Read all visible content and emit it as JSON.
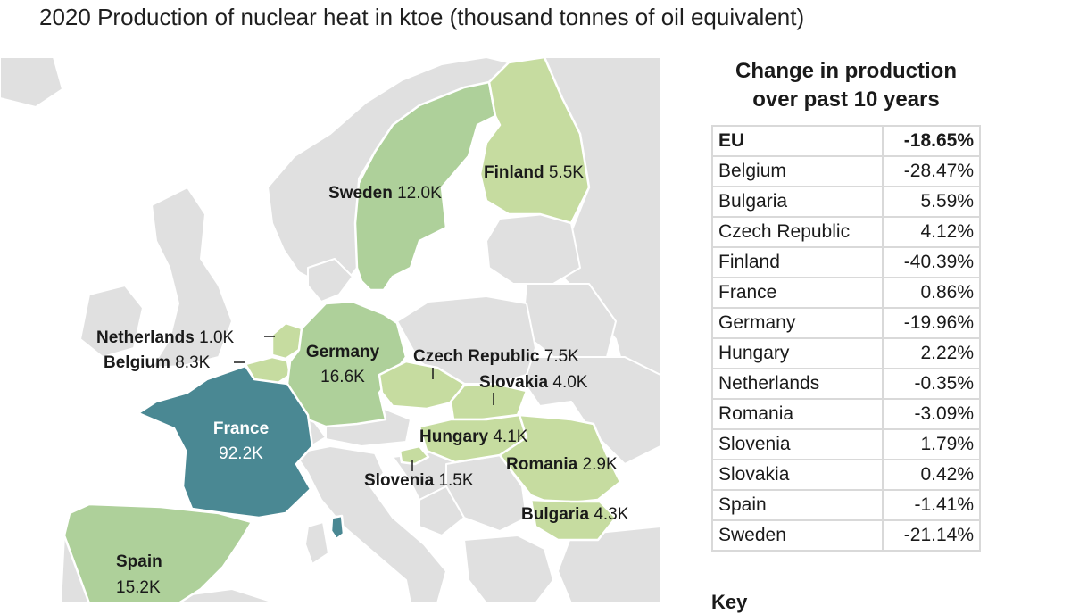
{
  "title": "2020 Production of nuclear heat in ktoe (thousand tonnes of oil equivalent)",
  "colors": {
    "background": "#ffffff",
    "non_producer": "#e0e0e0",
    "low": "#c6dca0",
    "mid": "#aed09a",
    "high": "#4a8893",
    "border": "#ffffff"
  },
  "map": {
    "countries": [
      {
        "id": "sweden",
        "name": "Sweden",
        "value": "12.0K",
        "level": "mid"
      },
      {
        "id": "finland",
        "name": "Finland",
        "value": "5.5K",
        "level": "low"
      },
      {
        "id": "netherlands",
        "name": "Netherlands",
        "value": "1.0K",
        "level": "low"
      },
      {
        "id": "belgium",
        "name": "Belgium",
        "value": "8.3K",
        "level": "low"
      },
      {
        "id": "germany",
        "name": "Germany",
        "value": "16.6K",
        "level": "mid"
      },
      {
        "id": "czech",
        "name": "Czech Republic",
        "value": "7.5K",
        "level": "low"
      },
      {
        "id": "slovakia",
        "name": "Slovakia",
        "value": "4.0K",
        "level": "low"
      },
      {
        "id": "france",
        "name": "France",
        "value": "92.2K",
        "level": "high"
      },
      {
        "id": "hungary",
        "name": "Hungary",
        "value": "4.1K",
        "level": "low"
      },
      {
        "id": "slovenia",
        "name": "Slovenia",
        "value": "1.5K",
        "level": "low"
      },
      {
        "id": "romania",
        "name": "Romania",
        "value": "2.9K",
        "level": "low"
      },
      {
        "id": "bulgaria",
        "name": "Bulgaria",
        "value": "4.3K",
        "level": "low"
      },
      {
        "id": "spain",
        "name": "Spain",
        "value": "15.2K",
        "level": "mid"
      }
    ]
  },
  "table": {
    "title_line1": "Change in production",
    "title_line2": "over past 10 years",
    "rows": [
      {
        "name": "EU",
        "value": "-18.65%"
      },
      {
        "name": "Belgium",
        "value": "-28.47%"
      },
      {
        "name": "Bulgaria",
        "value": "5.59%"
      },
      {
        "name": "Czech Republic",
        "value": "4.12%"
      },
      {
        "name": "Finland",
        "value": "-40.39%"
      },
      {
        "name": "France",
        "value": "0.86%"
      },
      {
        "name": "Germany",
        "value": "-19.96%"
      },
      {
        "name": "Hungary",
        "value": "2.22%"
      },
      {
        "name": "Netherlands",
        "value": "-0.35%"
      },
      {
        "name": "Romania",
        "value": "-3.09%"
      },
      {
        "name": "Slovenia",
        "value": "1.79%"
      },
      {
        "name": "Slovakia",
        "value": "0.42%"
      },
      {
        "name": "Spain",
        "value": "-1.41%"
      },
      {
        "name": "Sweden",
        "value": "-21.14%"
      }
    ]
  },
  "key_heading": "Key"
}
